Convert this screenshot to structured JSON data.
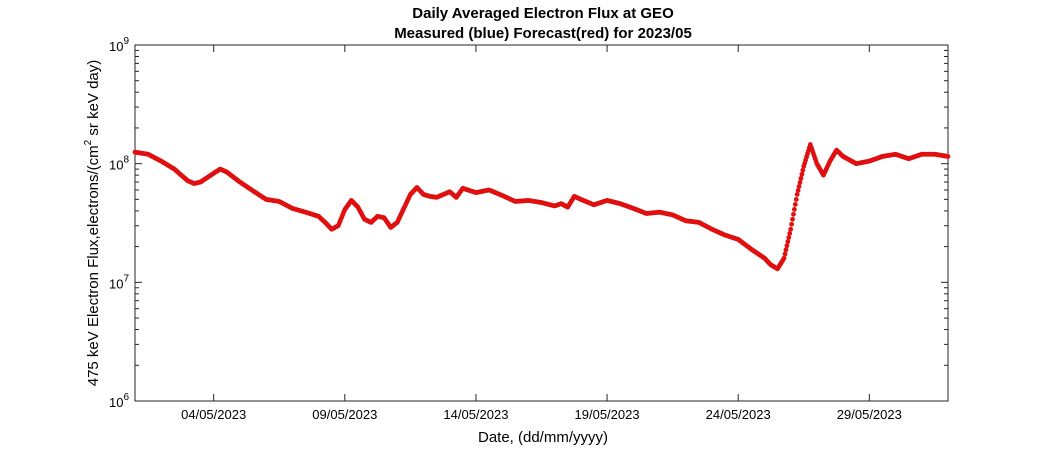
{
  "chart_data": {
    "type": "scatter",
    "title": [
      "Daily Averaged Electron Flux at GEO",
      "Measured (blue) Forecast(red) for 2023/05"
    ],
    "xlabel": "Date, (dd/mm/yyyy)",
    "ylabel_pre": "475 keV Electron Flux,electrons/(cm",
    "ylabel_sup": "2",
    "ylabel_post": " sr keV day)",
    "y_scale": "log",
    "ylim": [
      1000000,
      1000000000
    ],
    "xlim": [
      "2023-05-01",
      "2023-06-01"
    ],
    "xtick_labels": [
      "04/05/2023",
      "09/05/2023",
      "14/05/2023",
      "19/05/2023",
      "24/05/2023",
      "29/05/2023"
    ],
    "ytick_labels": [
      {
        "base": "10",
        "exp": "6"
      },
      {
        "base": "10",
        "exp": "7"
      },
      {
        "base": "10",
        "exp": "8"
      },
      {
        "base": "10",
        "exp": "9"
      }
    ],
    "grid": false,
    "series": [
      {
        "color": "#e01010",
        "points": [
          [
            "2023-05-01 00:00",
            125000000.0
          ],
          [
            "2023-05-01 12:00",
            120000000.0
          ],
          [
            "2023-05-02 00:00",
            105000000.0
          ],
          [
            "2023-05-02 12:00",
            90000000.0
          ],
          [
            "2023-05-03 00:00",
            72000000.0
          ],
          [
            "2023-05-03 06:00",
            68000000.0
          ],
          [
            "2023-05-03 12:00",
            70000000.0
          ],
          [
            "2023-05-04 00:00",
            83000000.0
          ],
          [
            "2023-05-04 06:00",
            90000000.0
          ],
          [
            "2023-05-04 12:00",
            85000000.0
          ],
          [
            "2023-05-05 00:00",
            70000000.0
          ],
          [
            "2023-05-05 12:00",
            59000000.0
          ],
          [
            "2023-05-06 00:00",
            50000000.0
          ],
          [
            "2023-05-06 12:00",
            48000000.0
          ],
          [
            "2023-05-07 00:00",
            42000000.0
          ],
          [
            "2023-05-07 12:00",
            39000000.0
          ],
          [
            "2023-05-08 00:00",
            36000000.0
          ],
          [
            "2023-05-08 06:00",
            32000000.0
          ],
          [
            "2023-05-08 12:00",
            28000000.0
          ],
          [
            "2023-05-08 18:00",
            30000000.0
          ],
          [
            "2023-05-09 00:00",
            41000000.0
          ],
          [
            "2023-05-09 06:00",
            49000000.0
          ],
          [
            "2023-05-09 12:00",
            43000000.0
          ],
          [
            "2023-05-09 18:00",
            34000000.0
          ],
          [
            "2023-05-10 00:00",
            32000000.0
          ],
          [
            "2023-05-10 06:00",
            36000000.0
          ],
          [
            "2023-05-10 12:00",
            35000000.0
          ],
          [
            "2023-05-10 18:00",
            29000000.0
          ],
          [
            "2023-05-11 00:00",
            32000000.0
          ],
          [
            "2023-05-11 06:00",
            42000000.0
          ],
          [
            "2023-05-11 12:00",
            55000000.0
          ],
          [
            "2023-05-11 18:00",
            63000000.0
          ],
          [
            "2023-05-12 00:00",
            55000000.0
          ],
          [
            "2023-05-12 06:00",
            53000000.0
          ],
          [
            "2023-05-12 12:00",
            52000000.0
          ],
          [
            "2023-05-13 00:00",
            58000000.0
          ],
          [
            "2023-05-13 06:00",
            52000000.0
          ],
          [
            "2023-05-13 12:00",
            62000000.0
          ],
          [
            "2023-05-14 00:00",
            57000000.0
          ],
          [
            "2023-05-14 12:00",
            60000000.0
          ],
          [
            "2023-05-15 00:00",
            54000000.0
          ],
          [
            "2023-05-15 12:00",
            48000000.0
          ],
          [
            "2023-05-16 00:00",
            49000000.0
          ],
          [
            "2023-05-16 12:00",
            47000000.0
          ],
          [
            "2023-05-17 00:00",
            44000000.0
          ],
          [
            "2023-05-17 06:00",
            46000000.0
          ],
          [
            "2023-05-17 12:00",
            43000000.0
          ],
          [
            "2023-05-17 18:00",
            53000000.0
          ],
          [
            "2023-05-18 00:00",
            50000000.0
          ],
          [
            "2023-05-18 12:00",
            45000000.0
          ],
          [
            "2023-05-19 00:00",
            49000000.0
          ],
          [
            "2023-05-19 12:00",
            46000000.0
          ],
          [
            "2023-05-20 00:00",
            42000000.0
          ],
          [
            "2023-05-20 12:00",
            38000000.0
          ],
          [
            "2023-05-21 00:00",
            39000000.0
          ],
          [
            "2023-05-21 12:00",
            37000000.0
          ],
          [
            "2023-05-22 00:00",
            33000000.0
          ],
          [
            "2023-05-22 12:00",
            32000000.0
          ],
          [
            "2023-05-23 00:00",
            28000000.0
          ],
          [
            "2023-05-23 12:00",
            25000000.0
          ],
          [
            "2023-05-24 00:00",
            23000000.0
          ],
          [
            "2023-05-24 12:00",
            19000000.0
          ],
          [
            "2023-05-25 00:00",
            16000000.0
          ],
          [
            "2023-05-25 06:00",
            14000000.0
          ],
          [
            "2023-05-25 12:00",
            13000000.0
          ],
          [
            "2023-05-25 18:00",
            16000000.0
          ],
          [
            "2023-05-26 00:00",
            28000000.0
          ],
          [
            "2023-05-26 06:00",
            55000000.0
          ],
          [
            "2023-05-26 12:00",
            95000000.0
          ],
          [
            "2023-05-26 18:00",
            145000000.0
          ],
          [
            "2023-05-27 00:00",
            100000000.0
          ],
          [
            "2023-05-27 06:00",
            80000000.0
          ],
          [
            "2023-05-27 12:00",
            105000000.0
          ],
          [
            "2023-05-27 18:00",
            130000000.0
          ],
          [
            "2023-05-28 00:00",
            115000000.0
          ],
          [
            "2023-05-28 12:00",
            100000000.0
          ],
          [
            "2023-05-29 00:00",
            105000000.0
          ],
          [
            "2023-05-29 12:00",
            115000000.0
          ],
          [
            "2023-05-30 00:00",
            120000000.0
          ],
          [
            "2023-05-30 12:00",
            110000000.0
          ],
          [
            "2023-05-31 00:00",
            120000000.0
          ],
          [
            "2023-05-31 12:00",
            120000000.0
          ],
          [
            "2023-06-01 00:00",
            115000000.0
          ]
        ]
      }
    ]
  }
}
